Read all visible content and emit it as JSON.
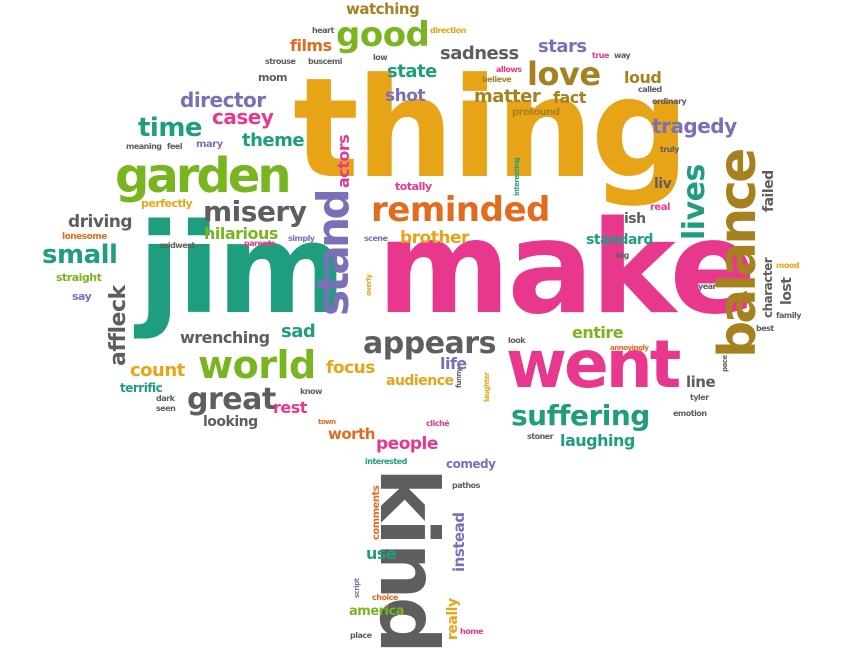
{
  "words": {
    "thing": "thing",
    "make": "make",
    "jim": "jim",
    "went": "went",
    "kind": "kind",
    "balance": "balance",
    "garden": "garden",
    "stand": "stand",
    "world": "world",
    "reminded": "reminded",
    "good": "good",
    "love": "love",
    "misery": "misery",
    "appears": "appears",
    "suffering": "suffering",
    "great": "great",
    "lives": "lives",
    "small": "small",
    "director": "director",
    "time": "time",
    "casey": "casey",
    "theme": "theme",
    "affleck": "affleck",
    "tragedy": "tragedy",
    "sadness": "sadness",
    "stars": "stars",
    "state": "state",
    "shot": "shot",
    "matter": "matter",
    "fact": "fact",
    "loud": "loud",
    "films": "films",
    "watching": "watching",
    "actors": "actors",
    "driving": "driving",
    "hilarious": "hilarious",
    "brother": "brother",
    "standard": "standard",
    "wrenching": "wrenching",
    "sad": "sad",
    "count": "count",
    "focus": "focus",
    "audience": "audience",
    "life": "life",
    "entire": "entire",
    "rest": "rest",
    "looking": "looking",
    "worth": "worth",
    "people": "people",
    "laughing": "laughing",
    "comedy": "comedy",
    "line": "line",
    "terrific": "terrific",
    "liv": "liv",
    "ish": "ish",
    "failed": "failed",
    "character": "character",
    "lost": "lost",
    "instead": "instead",
    "really": "really",
    "use": "use",
    "america": "america",
    "comments": "comments",
    "heart": "heart",
    "direction": "direction",
    "strouse": "strouse",
    "buscemi": "buscemi",
    "low": "low",
    "true": "true",
    "way": "way",
    "mom": "mom",
    "allows": "allows",
    "believe": "believe",
    "called": "called",
    "ordinary": "ordinary",
    "profound": "profound",
    "meaning": "meaning",
    "feel": "feel",
    "mary": "mary",
    "interesting": "interesting",
    "truly": "truly",
    "perfectly": "perfectly",
    "totally": "totally",
    "real": "real",
    "lonesome": "lonesome",
    "midwest": "midwest",
    "parents": "parents",
    "simply": "simply",
    "scene": "scene",
    "big": "big",
    "mood": "mood",
    "straight": "straight",
    "overly": "overly",
    "year": "year",
    "family": "family",
    "say": "say",
    "best": "best",
    "look": "look",
    "annoyingly": "annoyingly",
    "pace": "pace",
    "funny": "funny",
    "laughter": "laughter",
    "know": "know",
    "dark": "dark",
    "seen": "seen",
    "tyler": "tyler",
    "emotion": "emotion",
    "town": "town",
    "cliche": "cliché",
    "stoner": "stoner",
    "interested": "interested",
    "pathos": "pathos",
    "script": "script",
    "choice": "choice",
    "place": "place",
    "home": "home"
  }
}
